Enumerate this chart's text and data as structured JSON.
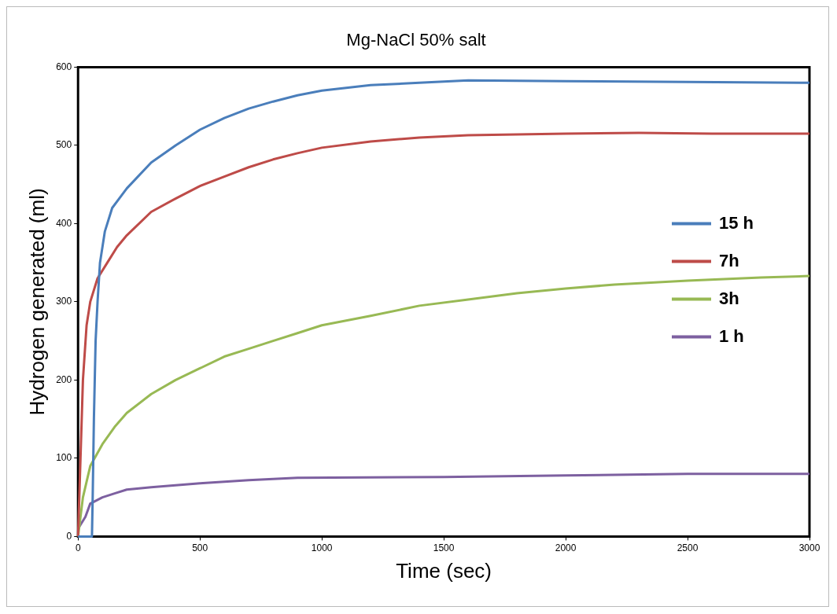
{
  "chart_data": {
    "type": "line",
    "title": "Mg-NaCl 50% salt",
    "xlabel": "Time (sec)",
    "ylabel": "Hydrogen generated (ml)",
    "xlim": [
      0,
      3000
    ],
    "xticks": [
      0,
      500,
      1000,
      1500,
      2000,
      2500,
      3000
    ],
    "ylim": [
      0,
      600
    ],
    "yticks": [
      0,
      100,
      200,
      300,
      400,
      500,
      600
    ],
    "grid": false,
    "legend": "right",
    "marker": "none",
    "line_style": "solid",
    "series": [
      {
        "name": "15 h",
        "color": "#4a7ebb",
        "x": [
          0,
          50,
          57,
          60,
          65,
          72,
          80,
          90,
          110,
          140,
          200,
          300,
          400,
          500,
          600,
          700,
          800,
          900,
          1000,
          1200,
          1400,
          1600,
          2000,
          2500,
          3000
        ],
        "values": [
          0,
          0,
          0,
          50,
          150,
          250,
          300,
          350,
          390,
          420,
          445,
          478,
          500,
          520,
          535,
          547,
          556,
          564,
          570,
          577,
          580,
          583,
          582,
          581,
          580
        ]
      },
      {
        "name": "7h",
        "color": "#be4b48",
        "x": [
          0,
          10,
          20,
          35,
          50,
          80,
          120,
          160,
          200,
          300,
          400,
          500,
          600,
          700,
          800,
          900,
          1000,
          1200,
          1400,
          1600,
          2000,
          2300,
          2600,
          3000
        ],
        "values": [
          0,
          100,
          200,
          270,
          300,
          330,
          350,
          370,
          385,
          415,
          432,
          448,
          460,
          472,
          482,
          490,
          497,
          505,
          510,
          513,
          515,
          516,
          515,
          515
        ]
      },
      {
        "name": "3h",
        "color": "#98b954",
        "x": [
          0,
          20,
          50,
          100,
          150,
          200,
          300,
          400,
          500,
          600,
          700,
          800,
          900,
          1000,
          1200,
          1400,
          1600,
          1800,
          2000,
          2200,
          2500,
          2800,
          3000
        ],
        "values": [
          0,
          50,
          90,
          118,
          140,
          158,
          182,
          200,
          215,
          230,
          240,
          250,
          260,
          270,
          282,
          295,
          303,
          311,
          317,
          322,
          327,
          331,
          333
        ]
      },
      {
        "name": "1 h",
        "color": "#7d60a0",
        "x": [
          0,
          30,
          50,
          100,
          150,
          200,
          300,
          500,
          700,
          900,
          1500,
          2000,
          2500,
          3000
        ],
        "values": [
          10,
          25,
          42,
          50,
          55,
          60,
          63,
          68,
          72,
          75,
          76,
          78,
          80,
          80
        ]
      }
    ]
  }
}
